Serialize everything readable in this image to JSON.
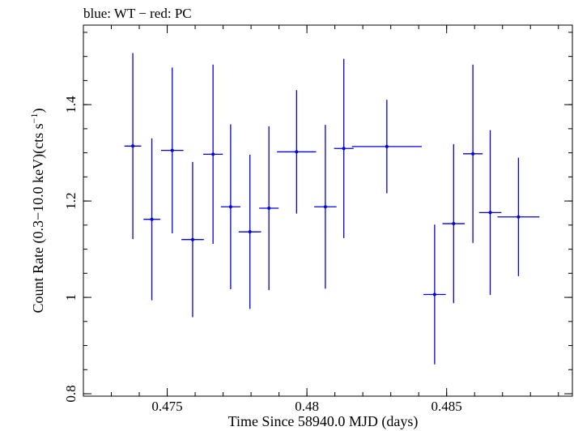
{
  "chart_data": {
    "type": "scatter",
    "title": "blue: WT − red: PC",
    "xlabel": "Time Since 58940.0 MJD (days)",
    "ylabel_main": "Count Rate (0.3−10.0 keV)(cts s",
    "ylabel_sup": "−1",
    "ylabel_close": ")",
    "xlim": [
      0.472,
      0.4895
    ],
    "ylim": [
      0.795,
      1.565
    ],
    "x_ticks": [
      {
        "value": 0.475,
        "label": "0.475"
      },
      {
        "value": 0.48,
        "label": "0.48"
      },
      {
        "value": 0.485,
        "label": "0.485"
      }
    ],
    "y_ticks": [
      {
        "value": 0.8,
        "label": "0.8"
      },
      {
        "value": 1.0,
        "label": "1"
      },
      {
        "value": 1.2,
        "label": "1.2"
      },
      {
        "value": 1.4,
        "label": "1.4"
      }
    ],
    "x_minor_step": 0.001,
    "y_minor_step": 0.05,
    "grid": false,
    "series": [
      {
        "color": "#0000e0",
        "points": [
          {
            "x": 0.47377,
            "xerr": 0.0003,
            "y": 1.314,
            "yerr": 0.193
          },
          {
            "x": 0.47445,
            "xerr": 0.0003,
            "y": 1.162,
            "yerr": 0.168
          },
          {
            "x": 0.47518,
            "xerr": 0.0004,
            "y": 1.305,
            "yerr": 0.172
          },
          {
            "x": 0.47591,
            "xerr": 0.0004,
            "y": 1.12,
            "yerr": 0.161
          },
          {
            "x": 0.47664,
            "xerr": 0.00035,
            "y": 1.297,
            "yerr": 0.186
          },
          {
            "x": 0.47727,
            "xerr": 0.00035,
            "y": 1.188,
            "yerr": 0.171
          },
          {
            "x": 0.47796,
            "xerr": 0.0004,
            "y": 1.136,
            "yerr": 0.16
          },
          {
            "x": 0.47864,
            "xerr": 0.00035,
            "y": 1.185,
            "yerr": 0.17
          },
          {
            "x": 0.47963,
            "xerr": 0.0007,
            "y": 1.302,
            "yerr": 0.128
          },
          {
            "x": 0.48066,
            "xerr": 0.0004,
            "y": 1.188,
            "yerr": 0.17
          },
          {
            "x": 0.48132,
            "xerr": 0.00035,
            "y": 1.309,
            "yerr": 0.186
          },
          {
            "x": 0.48286,
            "xerr": 0.00125,
            "y": 1.313,
            "yerr": 0.097
          },
          {
            "x": 0.48457,
            "xerr": 0.0004,
            "y": 1.006,
            "yerr": 0.145
          },
          {
            "x": 0.48525,
            "xerr": 0.0004,
            "y": 1.153,
            "yerr": 0.165
          },
          {
            "x": 0.48594,
            "xerr": 0.00035,
            "y": 1.298,
            "yerr": 0.185
          },
          {
            "x": 0.48656,
            "xerr": 0.0004,
            "y": 1.176,
            "yerr": 0.171
          },
          {
            "x": 0.48757,
            "xerr": 0.00075,
            "y": 1.167,
            "yerr": 0.123
          }
        ]
      }
    ]
  }
}
